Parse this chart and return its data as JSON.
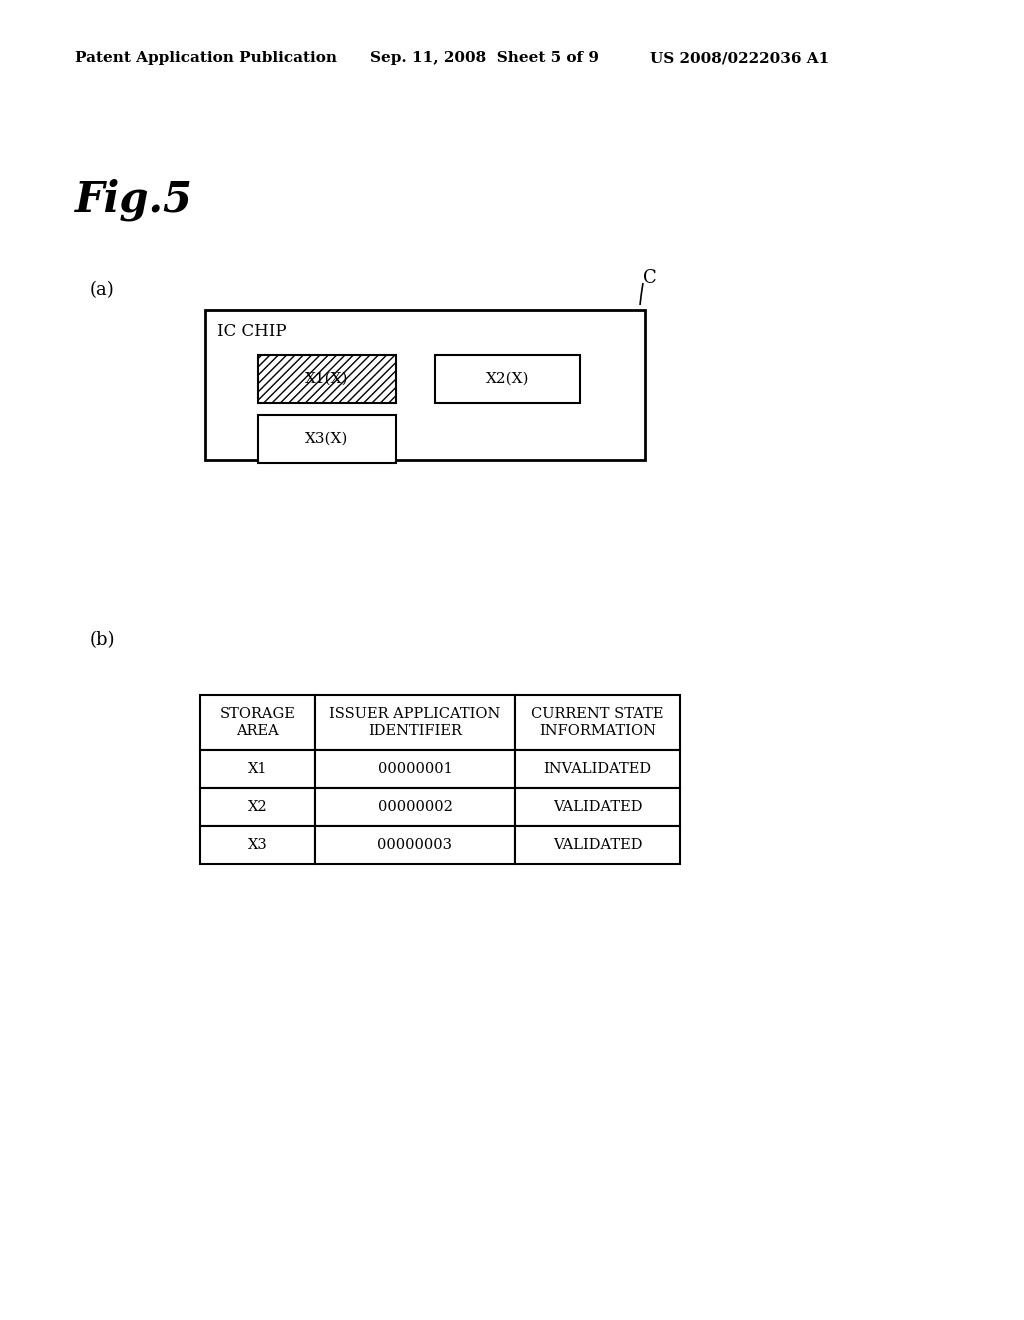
{
  "bg_color": "#ffffff",
  "header_left": "Patent Application Publication",
  "header_center": "Sep. 11, 2008  Sheet 5 of 9",
  "header_right": "US 2008/0222036 A1",
  "fig_label": "Fig.5",
  "part_a_label": "(a)",
  "part_b_label": "(b)",
  "ic_chip_label": "IC CHIP",
  "c_label": "C",
  "box_x1_label": "X1(X)",
  "box_x2_label": "X2(X)",
  "box_x3_label": "X3(X)",
  "table_headers": [
    "STORAGE\nAREA",
    "ISSUER APPLICATION\nIDENTIFIER",
    "CURRENT STATE\nINFORMATION"
  ],
  "table_rows": [
    [
      "X1",
      "00000001",
      "INVALIDATED"
    ],
    [
      "X2",
      "00000002",
      "VALIDATED"
    ],
    [
      "X3",
      "00000003",
      "VALIDATED"
    ]
  ]
}
